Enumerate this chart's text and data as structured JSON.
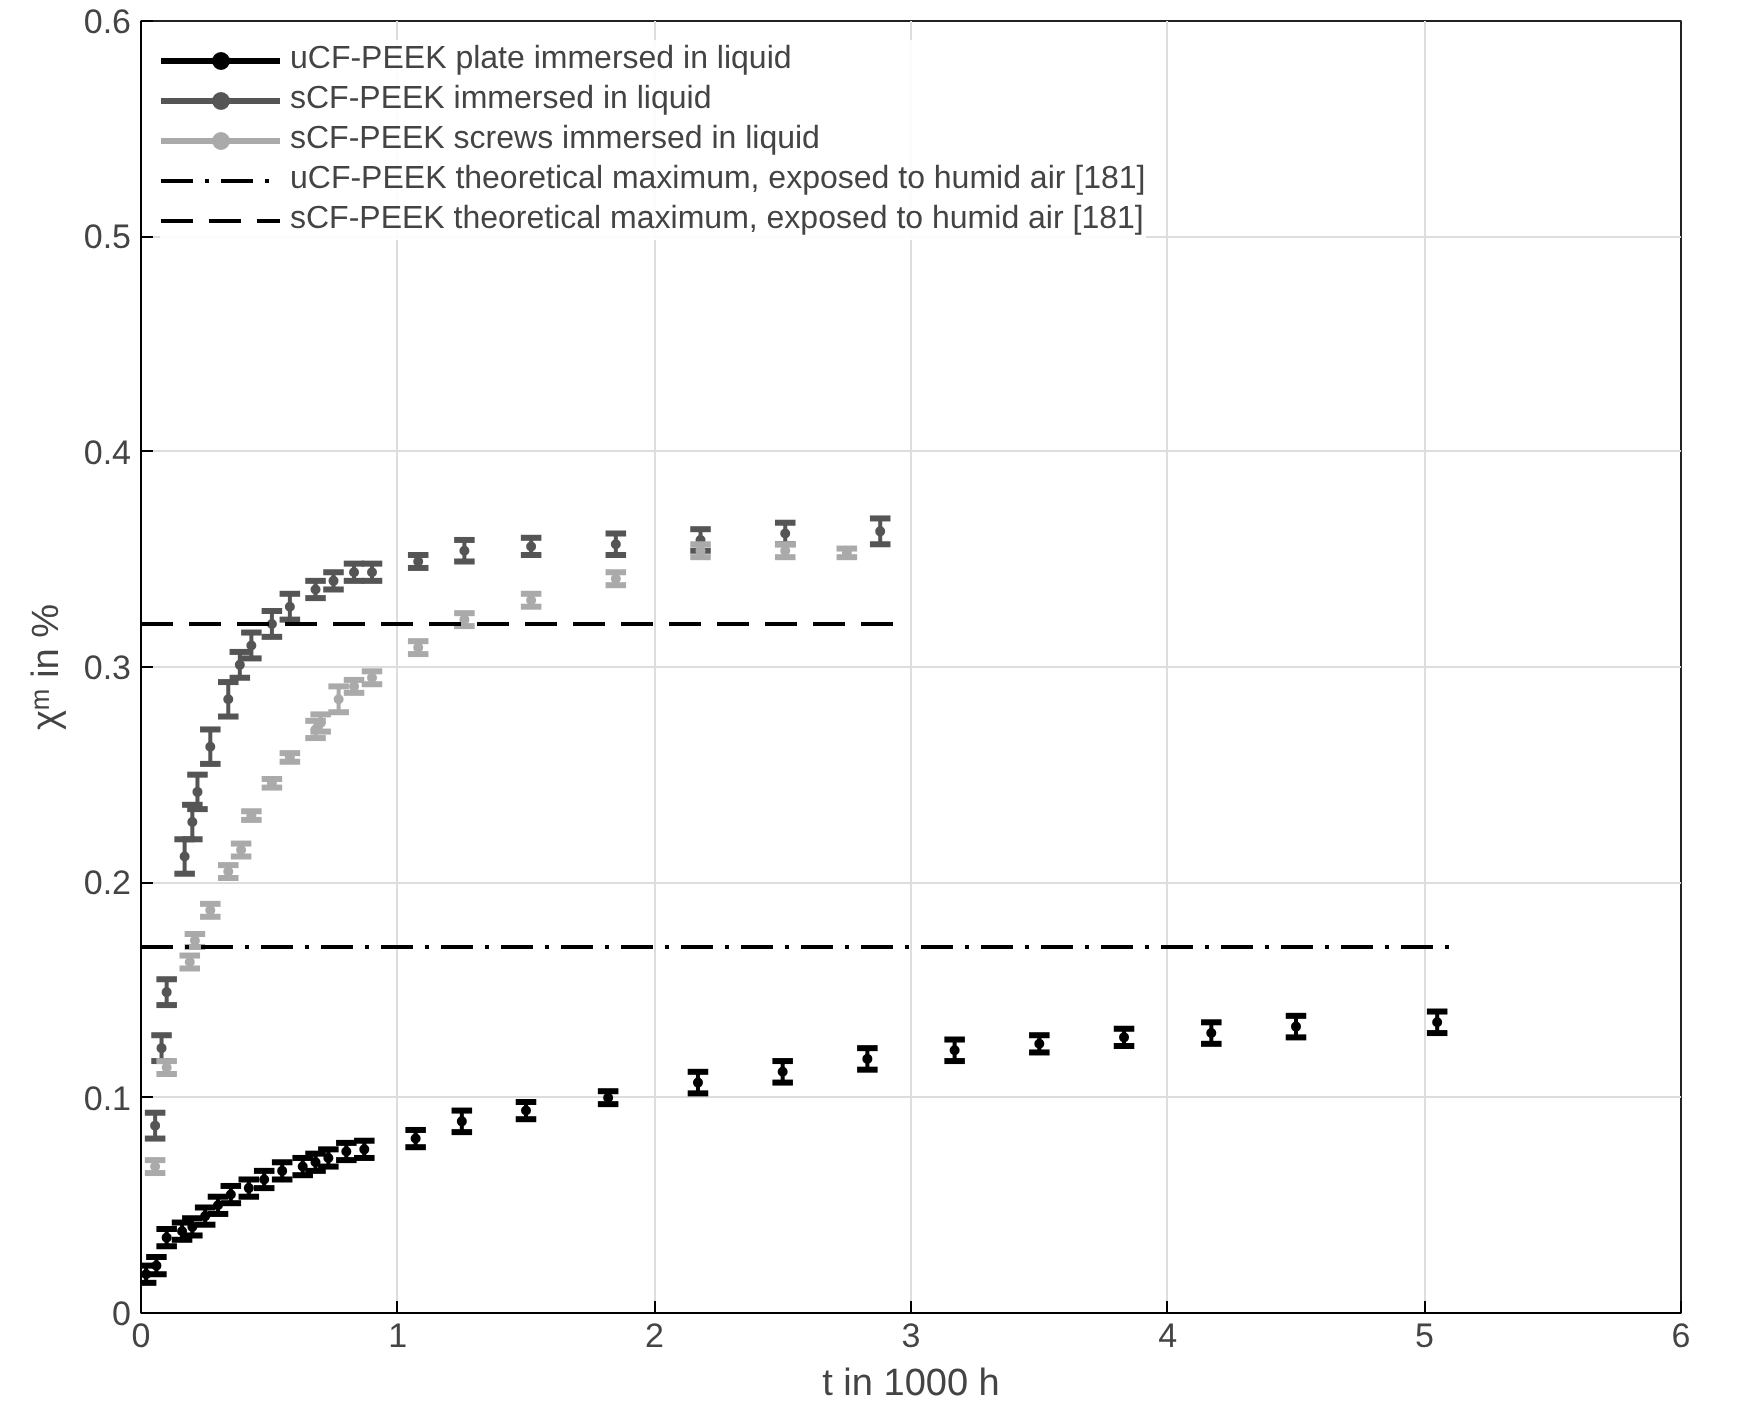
{
  "chart_data": {
    "type": "scatter",
    "xlabel": "t in 1000 h",
    "ylabel": "χᵐ in %",
    "xlim": [
      0,
      6
    ],
    "ylim": [
      0,
      0.6
    ],
    "xticks": [
      0,
      1,
      2,
      3,
      4,
      5,
      6
    ],
    "yticks": [
      0,
      0.1,
      0.2,
      0.3,
      0.4,
      0.5,
      0.6
    ],
    "grid": true,
    "legend": "top left",
    "series": [
      {
        "name": "uCF-PEEK plate immersed in liquid",
        "color": "#000000",
        "marker": "circle",
        "x": [
          0.02,
          0.06,
          0.1,
          0.16,
          0.2,
          0.25,
          0.3,
          0.35,
          0.42,
          0.48,
          0.55,
          0.63,
          0.68,
          0.73,
          0.8,
          0.87,
          1.07,
          1.25,
          1.5,
          1.82,
          2.17,
          2.5,
          2.83,
          3.17,
          3.5,
          3.83,
          4.17,
          4.5,
          5.05
        ],
        "values": [
          0.018,
          0.022,
          0.035,
          0.038,
          0.04,
          0.045,
          0.05,
          0.055,
          0.058,
          0.062,
          0.066,
          0.068,
          0.07,
          0.072,
          0.075,
          0.076,
          0.081,
          0.089,
          0.094,
          0.1,
          0.107,
          0.112,
          0.118,
          0.122,
          0.125,
          0.128,
          0.13,
          0.133,
          0.135
        ],
        "errors": [
          0.004,
          0.004,
          0.004,
          0.004,
          0.004,
          0.004,
          0.004,
          0.004,
          0.004,
          0.004,
          0.004,
          0.004,
          0.004,
          0.004,
          0.004,
          0.004,
          0.004,
          0.005,
          0.004,
          0.003,
          0.005,
          0.005,
          0.005,
          0.005,
          0.004,
          0.004,
          0.005,
          0.005,
          0.005
        ]
      },
      {
        "name": "sCF-PEEK immersed in liquid",
        "color": "#555555",
        "marker": "circle",
        "x": [
          0.055,
          0.08,
          0.1,
          0.17,
          0.2,
          0.22,
          0.27,
          0.34,
          0.385,
          0.43,
          0.51,
          0.58,
          0.68,
          0.75,
          0.83,
          0.9,
          1.08,
          1.26,
          1.52,
          1.85,
          2.18,
          2.51,
          2.88
        ],
        "values": [
          0.087,
          0.123,
          0.149,
          0.212,
          0.228,
          0.242,
          0.263,
          0.285,
          0.301,
          0.31,
          0.32,
          0.328,
          0.336,
          0.34,
          0.344,
          0.344,
          0.349,
          0.354,
          0.356,
          0.357,
          0.359,
          0.362,
          0.363
        ],
        "errors": [
          0.006,
          0.006,
          0.006,
          0.008,
          0.008,
          0.008,
          0.008,
          0.008,
          0.006,
          0.006,
          0.006,
          0.006,
          0.004,
          0.004,
          0.004,
          0.004,
          0.003,
          0.005,
          0.004,
          0.005,
          0.005,
          0.005,
          0.006
        ]
      },
      {
        "name": "sCF-PEEK screws immersed in liquid",
        "color": "#aaaaaa",
        "marker": "circle",
        "x": [
          0.055,
          0.1,
          0.19,
          0.21,
          0.27,
          0.34,
          0.39,
          0.43,
          0.51,
          0.58,
          0.68,
          0.7,
          0.77,
          0.83,
          0.9,
          1.08,
          1.26,
          1.52,
          1.85,
          2.18,
          2.51,
          2.75
        ],
        "values": [
          0.068,
          0.114,
          0.163,
          0.173,
          0.187,
          0.205,
          0.215,
          0.231,
          0.246,
          0.258,
          0.271,
          0.274,
          0.285,
          0.291,
          0.295,
          0.309,
          0.322,
          0.331,
          0.341,
          0.354,
          0.354,
          0.353
        ],
        "errors": [
          0.003,
          0.003,
          0.003,
          0.003,
          0.003,
          0.003,
          0.003,
          0.002,
          0.002,
          0.002,
          0.004,
          0.004,
          0.006,
          0.003,
          0.003,
          0.003,
          0.003,
          0.003,
          0.003,
          0.003,
          0.003,
          0.002
        ]
      },
      {
        "name": "uCF-PEEK theoretical maximum, exposed to humid air [181]",
        "type": "line",
        "color": "#000000",
        "line_style": "dashdot",
        "x": [
          0,
          5.13
        ],
        "values": [
          0.17,
          0.17
        ]
      },
      {
        "name": "sCF-PEEK theoretical maximum, exposed to humid air [181]",
        "type": "line",
        "color": "#000000",
        "line_style": "dashed",
        "x": [
          0,
          2.95
        ],
        "values": [
          0.32,
          0.32
        ]
      }
    ]
  }
}
